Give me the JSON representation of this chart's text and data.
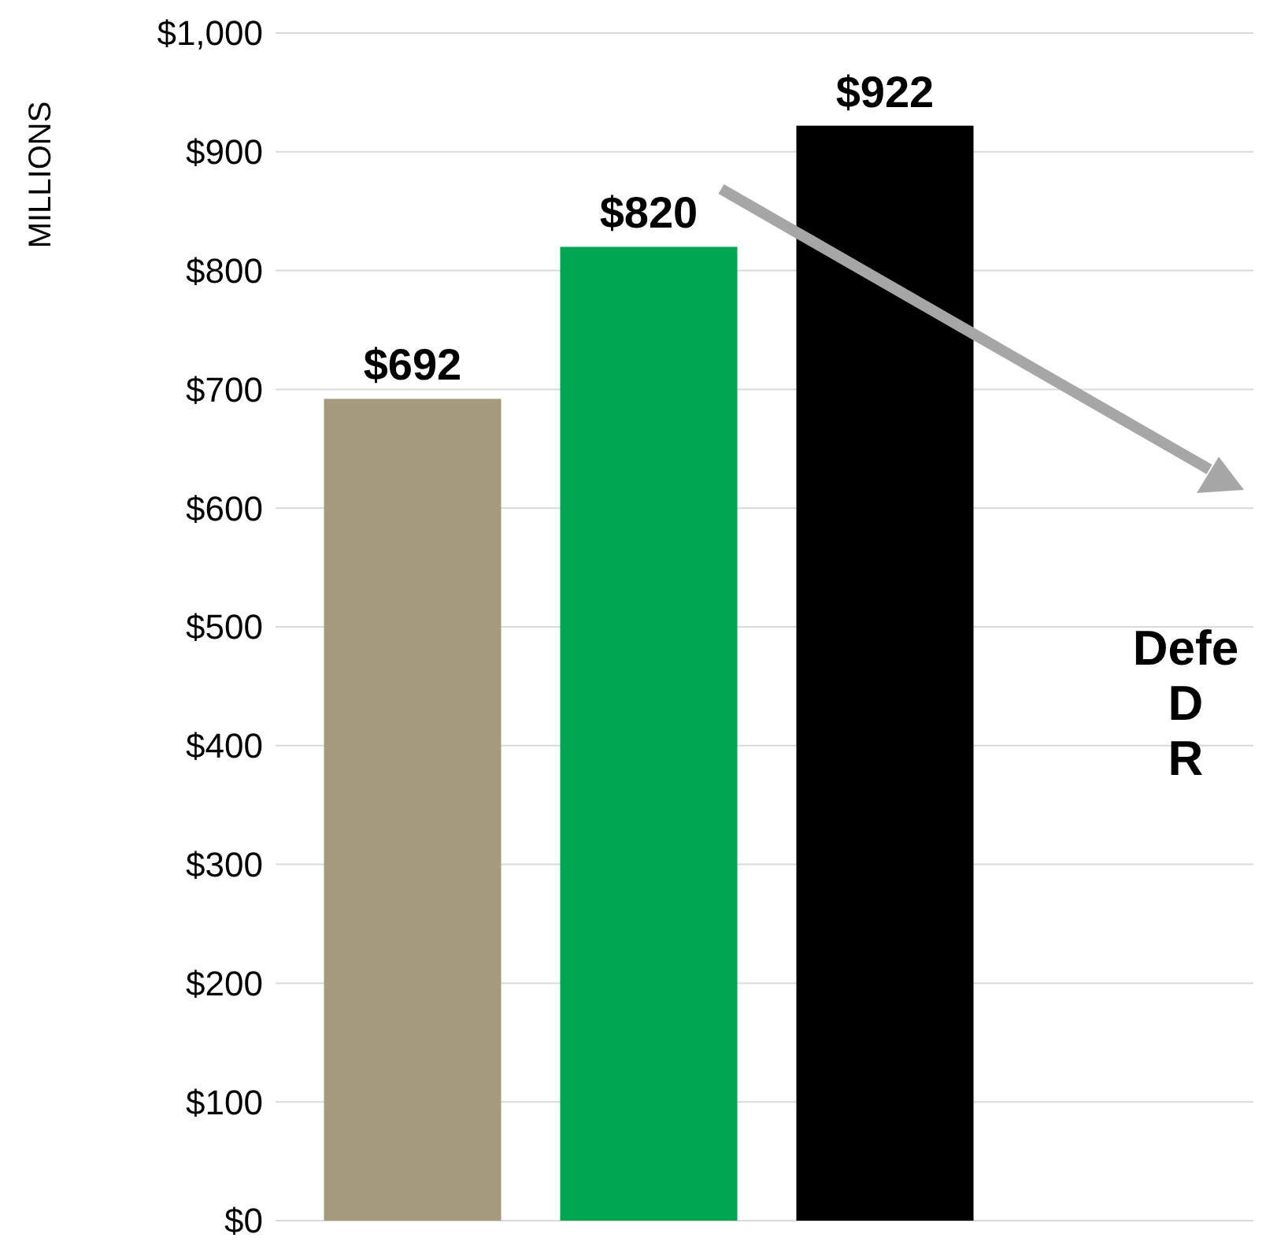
{
  "chart_data": {
    "type": "bar",
    "ylabel": "MILLIONS",
    "categories": [
      null,
      null,
      null
    ],
    "values": [
      692,
      820,
      922
    ],
    "colors": [
      "#a69a7e",
      "#00a651",
      "#000000"
    ],
    "value_labels": [
      "$692",
      "$820",
      "$922"
    ],
    "ylim": [
      0,
      1000
    ],
    "yticks": [
      {
        "value": 0,
        "label": "$0"
      },
      {
        "value": 100,
        "label": "$100"
      },
      {
        "value": 200,
        "label": "$200"
      },
      {
        "value": 300,
        "label": "$300"
      },
      {
        "value": 400,
        "label": "$400"
      },
      {
        "value": 500,
        "label": "$500"
      },
      {
        "value": 600,
        "label": "$600"
      },
      {
        "value": 700,
        "label": "$700"
      },
      {
        "value": 800,
        "label": "$800"
      },
      {
        "value": 900,
        "label": "$900"
      },
      {
        "value": 1000,
        "label": "$1,000"
      }
    ],
    "grid": "y",
    "annotations": [
      "Defe\nD\nR"
    ]
  }
}
